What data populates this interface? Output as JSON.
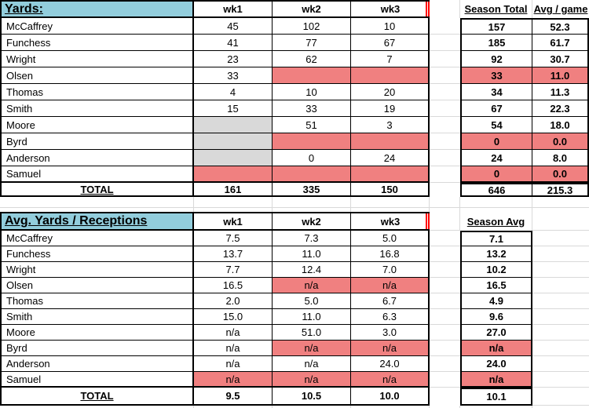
{
  "colors": {
    "header_blue": "#92CDDC",
    "missing_red": "#F08080",
    "empty_gray": "#D9D9D9",
    "gridline": "#D9D9D9",
    "pagebreak_red": "#FF0000"
  },
  "yards_table": {
    "title": "Yards:",
    "week_headers": [
      "wk1",
      "wk2",
      "wk3"
    ],
    "summary_headers": [
      "Season Total",
      "Avg / game"
    ],
    "rows": [
      {
        "name": "McCaffrey",
        "wk1": "45",
        "wk2": "102",
        "wk3": "10",
        "season_total": "157",
        "avg_per_game": "52.3"
      },
      {
        "name": "Funchess",
        "wk1": "41",
        "wk2": "77",
        "wk3": "67",
        "season_total": "185",
        "avg_per_game": "61.7"
      },
      {
        "name": "Wright",
        "wk1": "23",
        "wk2": "62",
        "wk3": "7",
        "season_total": "92",
        "avg_per_game": "30.7"
      },
      {
        "name": "Olsen",
        "wk1": "33",
        "wk2": "",
        "wk3": "",
        "season_total": "33",
        "avg_per_game": "11.0"
      },
      {
        "name": "Thomas",
        "wk1": "4",
        "wk2": "10",
        "wk3": "20",
        "season_total": "34",
        "avg_per_game": "11.3"
      },
      {
        "name": "Smith",
        "wk1": "15",
        "wk2": "33",
        "wk3": "19",
        "season_total": "67",
        "avg_per_game": "22.3"
      },
      {
        "name": "Moore",
        "wk1": "",
        "wk2": "51",
        "wk3": "3",
        "season_total": "54",
        "avg_per_game": "18.0"
      },
      {
        "name": "Byrd",
        "wk1": "",
        "wk2": "",
        "wk3": "",
        "season_total": "0",
        "avg_per_game": "0.0"
      },
      {
        "name": "Anderson",
        "wk1": "",
        "wk2": "0",
        "wk3": "24",
        "season_total": "24",
        "avg_per_game": "8.0"
      },
      {
        "name": "Samuel",
        "wk1": "",
        "wk2": "",
        "wk3": "",
        "season_total": "0",
        "avg_per_game": "0.0"
      }
    ],
    "total_row": {
      "label": "TOTAL",
      "wk1": "161",
      "wk2": "335",
      "wk3": "150",
      "season_total": "646",
      "avg_per_game": "215.3"
    }
  },
  "avg_table": {
    "title": "Avg. Yards / Receptions",
    "week_headers": [
      "wk1",
      "wk2",
      "wk3"
    ],
    "summary_headers": [
      "Season Avg"
    ],
    "rows": [
      {
        "name": "McCaffrey",
        "wk1": "7.5",
        "wk2": "7.3",
        "wk3": "5.0",
        "season_avg": "7.1"
      },
      {
        "name": "Funchess",
        "wk1": "13.7",
        "wk2": "11.0",
        "wk3": "16.8",
        "season_avg": "13.2"
      },
      {
        "name": "Wright",
        "wk1": "7.7",
        "wk2": "12.4",
        "wk3": "7.0",
        "season_avg": "10.2"
      },
      {
        "name": "Olsen",
        "wk1": "16.5",
        "wk2": "n/a",
        "wk3": "n/a",
        "season_avg": "16.5"
      },
      {
        "name": "Thomas",
        "wk1": "2.0",
        "wk2": "5.0",
        "wk3": "6.7",
        "season_avg": "4.9"
      },
      {
        "name": "Smith",
        "wk1": "15.0",
        "wk2": "11.0",
        "wk3": "6.3",
        "season_avg": "9.6"
      },
      {
        "name": "Moore",
        "wk1": "n/a",
        "wk2": "51.0",
        "wk3": "3.0",
        "season_avg": "27.0"
      },
      {
        "name": "Byrd",
        "wk1": "n/a",
        "wk2": "n/a",
        "wk3": "n/a",
        "season_avg": "n/a"
      },
      {
        "name": "Anderson",
        "wk1": "n/a",
        "wk2": "n/a",
        "wk3": "24.0",
        "season_avg": "24.0"
      },
      {
        "name": "Samuel",
        "wk1": "n/a",
        "wk2": "n/a",
        "wk3": "n/a",
        "season_avg": "n/a"
      }
    ],
    "total_row": {
      "label": "TOTAL",
      "wk1": "9.5",
      "wk2": "10.5",
      "wk3": "10.0",
      "season_avg": "10.1"
    }
  }
}
